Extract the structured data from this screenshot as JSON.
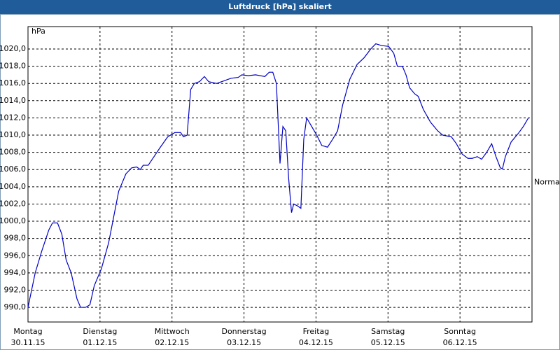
{
  "chart_data": {
    "type": "line",
    "title": "Luftdruck [hPa] skaliert",
    "y_unit": "hPa",
    "x": [
      0,
      0.1,
      0.19,
      0.29,
      0.34,
      0.41,
      0.47,
      0.53,
      0.6,
      0.68,
      0.73,
      0.8,
      0.86,
      0.92,
      1.02,
      1.12,
      1.19,
      1.26,
      1.36,
      1.44,
      1.51,
      1.56,
      1.6,
      1.67,
      1.75,
      1.83,
      1.94,
      2.04,
      2.12,
      2.16,
      2.21,
      2.26,
      2.31,
      2.38,
      2.45,
      2.51,
      2.62,
      2.72,
      2.82,
      2.92,
      2.97,
      3.06,
      3.16,
      3.29,
      3.35,
      3.4,
      3.45,
      3.5,
      3.54,
      3.58,
      3.62,
      3.66,
      3.69,
      3.74,
      3.79,
      3.83,
      3.87,
      3.94,
      4.01,
      4.08,
      4.16,
      4.23,
      4.3,
      4.37,
      4.47,
      4.57,
      4.67,
      4.76,
      4.83,
      4.91,
      5.01,
      5.08,
      5.13,
      5.2,
      5.25,
      5.3,
      5.37,
      5.42,
      5.49,
      5.59,
      5.69,
      5.76,
      5.88,
      5.95,
      6.03,
      6.11,
      6.17,
      6.24,
      6.3,
      6.37,
      6.44,
      6.5,
      6.56,
      6.59,
      6.63,
      6.71,
      6.81,
      6.88,
      6.95
    ],
    "values": [
      990,
      994,
      996.5,
      999,
      999.8,
      999.8,
      998.5,
      995.5,
      994,
      991,
      990,
      990,
      990.3,
      992.5,
      994.5,
      997.5,
      1000.5,
      1003.5,
      1005.5,
      1006.2,
      1006.3,
      1006,
      1006.5,
      1006.5,
      1007.5,
      1008.5,
      1009.8,
      1010.3,
      1010.3,
      1009.8,
      1010,
      1015.3,
      1016,
      1016.2,
      1016.8,
      1016.2,
      1016,
      1016.3,
      1016.6,
      1016.7,
      1017,
      1016.9,
      1017,
      1016.8,
      1017.3,
      1017.3,
      1016,
      1006.7,
      1011,
      1010.5,
      1005,
      1001,
      1002,
      1001.8,
      1001.5,
      1009.5,
      1012,
      1011,
      1010,
      1008.8,
      1008.6,
      1009.5,
      1010.5,
      1013.5,
      1016.5,
      1018.2,
      1019,
      1020,
      1020.6,
      1020.4,
      1020.3,
      1019.5,
      1018,
      1018,
      1017,
      1015.5,
      1014.8,
      1014.5,
      1013,
      1011.5,
      1010.5,
      1010,
      1009.8,
      1009,
      1007.8,
      1007.3,
      1007.3,
      1007.5,
      1007.2,
      1008,
      1009,
      1007.5,
      1006.2,
      1006.1,
      1007.5,
      1009.2,
      1010.2,
      1011,
      1012
    ],
    "color": "#0000c8",
    "xlim": [
      0,
      7
    ],
    "xticks": [
      {
        "value": 0,
        "label": "Montag",
        "date": "30.11.15"
      },
      {
        "value": 1,
        "label": "Dienstag",
        "date": "01.12.15"
      },
      {
        "value": 2,
        "label": "Mittwoch",
        "date": "02.12.15"
      },
      {
        "value": 3,
        "label": "Donnerstag",
        "date": "03.12.15"
      },
      {
        "value": 4,
        "label": "Freitag",
        "date": "04.12.15"
      },
      {
        "value": 5,
        "label": "Samstag",
        "date": "05.12.15"
      },
      {
        "value": 6,
        "label": "Sonntag",
        "date": "06.12.15"
      }
    ],
    "ylim": [
      988.3,
      1022.6
    ],
    "yticks": [
      {
        "value": 990,
        "label": "990,0"
      },
      {
        "value": 992,
        "label": "992,0"
      },
      {
        "value": 994,
        "label": "994,0"
      },
      {
        "value": 996,
        "label": "996,0"
      },
      {
        "value": 998,
        "label": "998,0"
      },
      {
        "value": 1000,
        "label": "1000,0"
      },
      {
        "value": 1002,
        "label": "1002,0"
      },
      {
        "value": 1004,
        "label": "1004,0"
      },
      {
        "value": 1006,
        "label": "1006,0"
      },
      {
        "value": 1008,
        "label": "1008,0"
      },
      {
        "value": 1010,
        "label": "1010,0"
      },
      {
        "value": 1012,
        "label": "1012,0"
      },
      {
        "value": 1014,
        "label": "1014,0"
      },
      {
        "value": 1016,
        "label": "1016,0"
      },
      {
        "value": 1018,
        "label": "1018,0"
      },
      {
        "value": 1020,
        "label": "1020,0"
      }
    ],
    "grid": true,
    "normal": {
      "label": "Normal",
      "value": 1004.5
    }
  }
}
